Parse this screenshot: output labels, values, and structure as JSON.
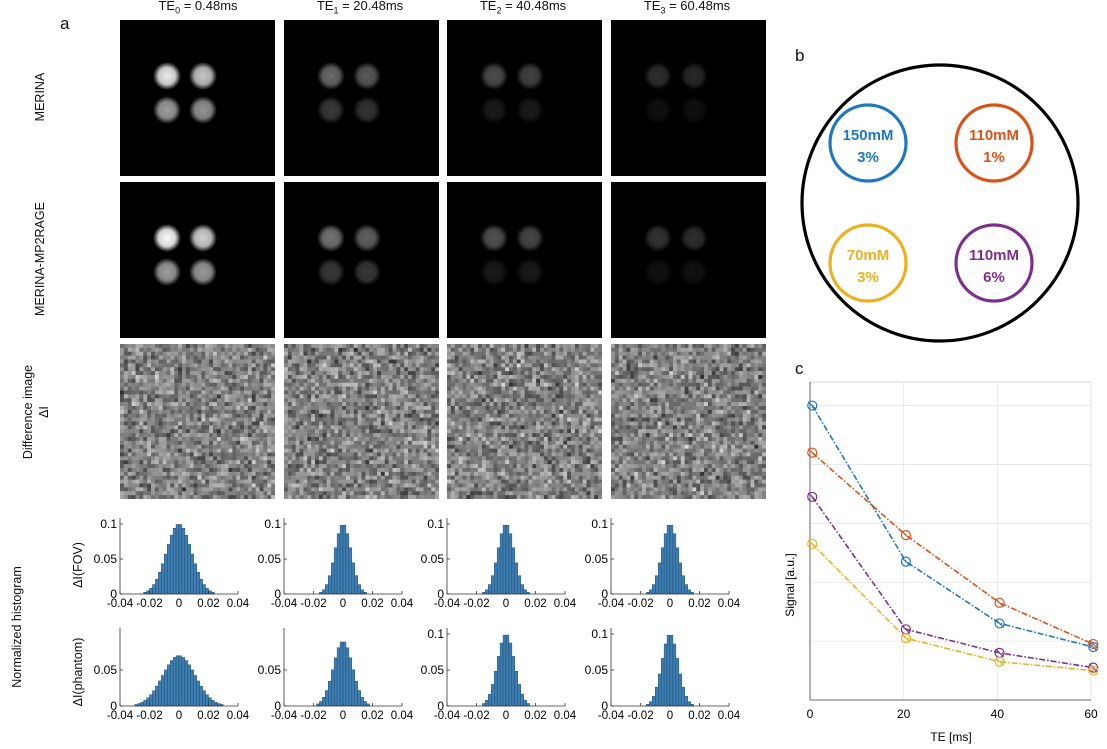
{
  "panels": {
    "a": "a",
    "b": "b",
    "c": "c"
  },
  "columns": [
    {
      "pre": "TE",
      "sub": "0",
      "post": " = 0.48ms"
    },
    {
      "pre": "TE",
      "sub": "1",
      "post": " = 20.48ms"
    },
    {
      "pre": "TE",
      "sub": "2",
      "post": " = 40.48ms"
    },
    {
      "pre": "TE",
      "sub": "3",
      "post": " = 60.48ms"
    }
  ],
  "row_labels": {
    "merina": "MERINA",
    "merina_mp2rage": "MERINA-MP2RAGE",
    "diff_line1": "Difference image",
    "diff_line2": "ΔI",
    "hist_group": "Normalized histogram",
    "hist_fov": "ΔI(FOV)",
    "hist_phantom": "ΔI(phantom)"
  },
  "spot_brightness": {
    "merina": [
      [
        0.92,
        0.78,
        0.62,
        0.58
      ],
      [
        0.42,
        0.35,
        0.22,
        0.2
      ],
      [
        0.3,
        0.26,
        0.1,
        0.1
      ],
      [
        0.18,
        0.16,
        0.06,
        0.06
      ]
    ],
    "merina_mp2rage": [
      [
        0.98,
        0.82,
        0.62,
        0.6
      ],
      [
        0.46,
        0.38,
        0.22,
        0.22
      ],
      [
        0.32,
        0.28,
        0.1,
        0.1
      ],
      [
        0.2,
        0.18,
        0.07,
        0.07
      ]
    ]
  },
  "histograms": {
    "fov": [
      {
        "yticks": [
          "0.1",
          "0.05",
          "0"
        ],
        "ymax": 0.1,
        "sd": 0.0085
      },
      {
        "yticks": [
          "0.1",
          "0.05",
          "0"
        ],
        "ymax": 0.1,
        "sd": 0.0055
      },
      {
        "yticks": [
          "0.1",
          "0.05",
          "0"
        ],
        "ymax": 0.1,
        "sd": 0.0055
      },
      {
        "yticks": [
          "0.1",
          "0.05",
          "0"
        ],
        "ymax": 0.1,
        "sd": 0.0055
      }
    ],
    "phantom": [
      {
        "yticks": [
          "0.05",
          "0"
        ],
        "ymax": 0.07,
        "sd": 0.011
      },
      {
        "yticks": [
          "0.05",
          "0"
        ],
        "ymax": 0.09,
        "sd": 0.0065
      },
      {
        "yticks": [
          "0.1",
          "0.05",
          "0"
        ],
        "ymax": 0.1,
        "sd": 0.0058
      },
      {
        "yticks": [
          "0.1",
          "0.05",
          "0"
        ],
        "ymax": 0.1,
        "sd": 0.0055
      }
    ],
    "xticks": [
      "-0.04",
      "-0.02",
      "0",
      "0.02",
      "0.04"
    ]
  },
  "phantom_circles": [
    {
      "line1": "150mM",
      "line2": "3%",
      "color": "#1f77c4"
    },
    {
      "line1": "110mM",
      "line2": "1%",
      "color": "#d95319"
    },
    {
      "line1": "70mM",
      "line2": "3%",
      "color": "#edb120"
    },
    {
      "line1": "110mM",
      "line2": "6%",
      "color": "#7e2f8e"
    }
  ],
  "chart_data": {
    "type": "line",
    "xlabel": "TE [ms]",
    "ylabel": "Signal [a.u.]",
    "xlim": [
      0,
      60
    ],
    "xticks": [
      0,
      20,
      40,
      60
    ],
    "grid": true,
    "x": [
      0.48,
      20.48,
      40.48,
      60.48
    ],
    "series": [
      {
        "color": "#1f77c4",
        "values": [
          1.0,
          0.47,
          0.26,
          0.18
        ]
      },
      {
        "color": "#d95319",
        "values": [
          0.84,
          0.56,
          0.33,
          0.19
        ]
      },
      {
        "color": "#7e2f8e",
        "values": [
          0.69,
          0.24,
          0.16,
          0.11
        ]
      },
      {
        "color": "#edb120",
        "values": [
          0.53,
          0.21,
          0.13,
          0.1
        ]
      }
    ]
  }
}
